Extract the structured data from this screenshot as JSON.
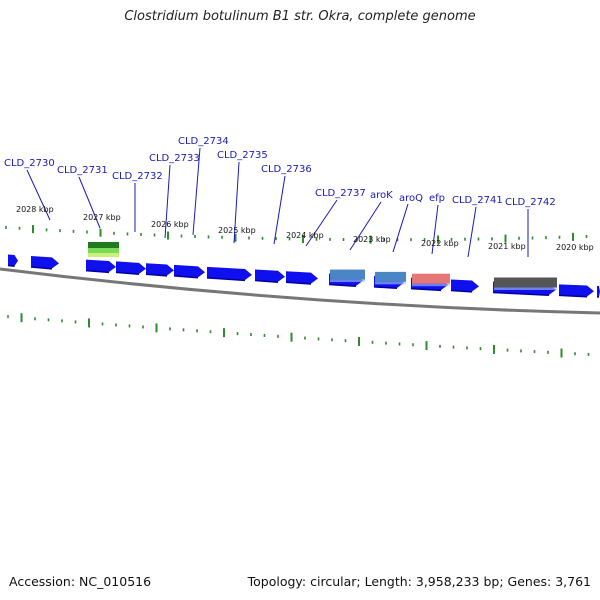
{
  "title": "Clostridium botulinum B1 str. Okra, complete genome",
  "footer": {
    "accession": "Accession: NC_010516",
    "summary": "Topology: circular; Length: 3,958,233 bp; Genes: 3,761"
  },
  "colors": {
    "cds": "#1010ee",
    "backbone": "#777777",
    "tick": "#2e8b2e",
    "label": "#1a1ab8",
    "rrna": "#4a86c5",
    "trna": "#e77777",
    "misc": "#555555",
    "green": "#2a9a2a"
  },
  "kbp_labels": [
    "2028 kbp",
    "2027 kbp",
    "2026 kbp",
    "2025 kbp",
    "2024 kbp",
    "2023 kbp",
    "2022 kbp",
    "2021 kbp",
    "2020 kbp"
  ],
  "gene_labels": [
    "CLD_2730",
    "CLD_2731",
    "CLD_2732",
    "CLD_2733",
    "CLD_2734",
    "CLD_2735",
    "CLD_2736",
    "CLD_2737",
    "aroK",
    "aroQ",
    "efp",
    "CLD_2741",
    "CLD_2742"
  ]
}
